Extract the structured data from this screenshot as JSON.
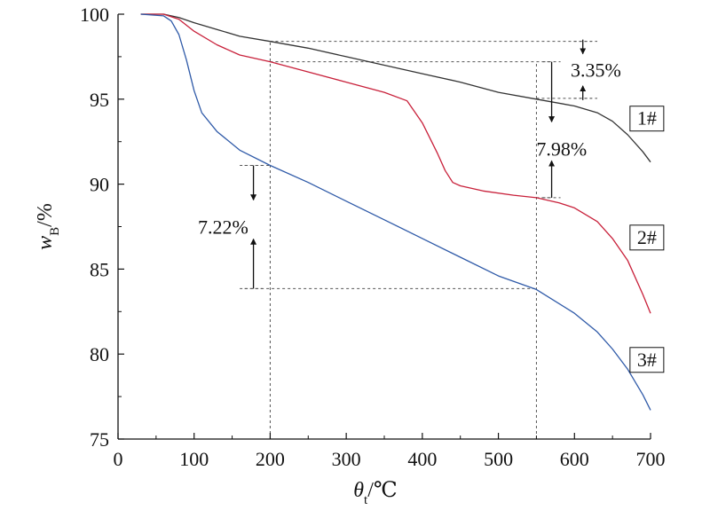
{
  "chart_data": {
    "type": "line",
    "xlabel": {
      "symbol": "θ",
      "sub": "t",
      "unit": "/℃"
    },
    "ylabel": {
      "symbol": "w",
      "sub": "B",
      "unit": "/%"
    },
    "xlim": [
      0,
      700
    ],
    "ylim": [
      75,
      100
    ],
    "xticks": [
      0,
      100,
      200,
      300,
      400,
      500,
      600,
      700
    ],
    "yticks": [
      75,
      80,
      85,
      90,
      95,
      100
    ],
    "grid": false,
    "legend": "none",
    "series": [
      {
        "name": "1#",
        "color": "#333333",
        "x": [
          30,
          60,
          80,
          100,
          130,
          160,
          200,
          250,
          300,
          350,
          400,
          450,
          500,
          550,
          600,
          630,
          650,
          670,
          690,
          700
        ],
        "y": [
          100,
          100,
          99.8,
          99.5,
          99.1,
          98.7,
          98.4,
          98.0,
          97.5,
          97.0,
          96.5,
          96.0,
          95.4,
          95.0,
          94.6,
          94.2,
          93.7,
          92.9,
          91.9,
          91.3
        ]
      },
      {
        "name": "2#",
        "color": "#c8203a",
        "x": [
          30,
          60,
          80,
          100,
          130,
          160,
          200,
          250,
          300,
          350,
          380,
          400,
          420,
          430,
          440,
          450,
          480,
          520,
          550,
          580,
          600,
          630,
          650,
          670,
          690,
          700
        ],
        "y": [
          100,
          100,
          99.7,
          99.0,
          98.2,
          97.6,
          97.2,
          96.6,
          96.0,
          95.4,
          94.9,
          93.6,
          91.8,
          90.8,
          90.1,
          89.9,
          89.6,
          89.35,
          89.2,
          88.9,
          88.6,
          87.8,
          86.8,
          85.5,
          83.5,
          82.4
        ]
      },
      {
        "name": "3#",
        "color": "#2f5aa8",
        "x": [
          30,
          60,
          70,
          80,
          90,
          100,
          110,
          130,
          160,
          200,
          250,
          300,
          350,
          400,
          450,
          500,
          550,
          600,
          630,
          650,
          670,
          690,
          700
        ],
        "y": [
          100,
          99.9,
          99.6,
          98.8,
          97.3,
          95.5,
          94.2,
          93.1,
          92.0,
          91.1,
          90.1,
          89.0,
          87.9,
          86.8,
          85.7,
          84.6,
          83.8,
          82.4,
          81.3,
          80.3,
          79.1,
          77.6,
          76.7
        ]
      }
    ],
    "series_labels": [
      {
        "text": "1#",
        "x": 680,
        "y": 93.7
      },
      {
        "text": "2#",
        "x": 680,
        "y": 86.7
      },
      {
        "text": "3#",
        "x": 680,
        "y": 79.5
      }
    ],
    "reference_lines": [
      {
        "orient": "v",
        "x": 200,
        "y_from": 75,
        "y_to": 98.4
      },
      {
        "orient": "v",
        "x": 550,
        "y_from": 75,
        "y_to": 97.2
      },
      {
        "orient": "h",
        "y": 98.4,
        "x_from": 200,
        "x_to": 630
      },
      {
        "orient": "h",
        "y": 95.05,
        "x_from": 550,
        "x_to": 630
      },
      {
        "orient": "h",
        "y": 97.2,
        "x_from": 200,
        "x_to": 570
      },
      {
        "orient": "h",
        "y": 89.2,
        "x_from": 550,
        "x_to": 570
      },
      {
        "orient": "h",
        "y": 91.1,
        "x_from": 160,
        "x_to": 200
      },
      {
        "orient": "h",
        "y": 83.85,
        "x_from": 160,
        "x_to": 550
      }
    ],
    "annotations": [
      {
        "text": "3.35%",
        "x": 611,
        "y_top": 98.4,
        "y_bottom": 95.05,
        "label_y": 96.75,
        "label_x": 595
      },
      {
        "text": "7.98%",
        "x": 570,
        "y_top": 97.2,
        "y_bottom": 89.2,
        "label_y": 92.1,
        "label_x": 550
      },
      {
        "text": "7.22%",
        "x": 178,
        "y_top": 91.1,
        "y_bottom": 83.85,
        "label_y": 87.5,
        "label_x": 105
      }
    ]
  }
}
